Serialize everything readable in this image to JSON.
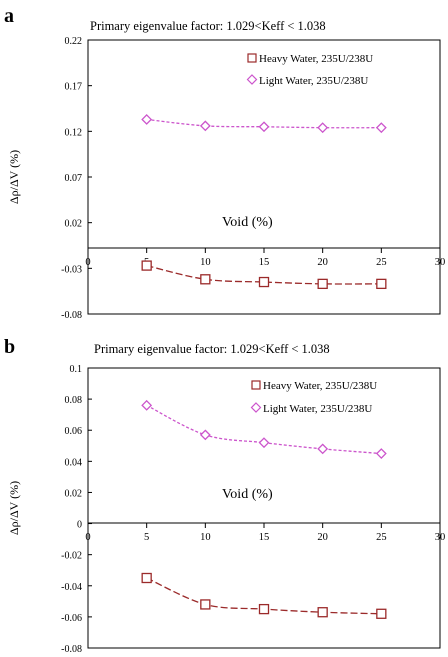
{
  "chart_data": [
    {
      "panel": "a",
      "type": "line",
      "title": "Primary eigenvalue factor: 1.029<Keff < 1.038",
      "xlabel": "Void  (%)",
      "ylabel": "Δρ/ΔV (%)",
      "xlim": [
        0,
        30
      ],
      "ylim": [
        -0.08,
        0.22
      ],
      "xticks": [
        0,
        5,
        10,
        15,
        20,
        25,
        30
      ],
      "yticks": [
        -0.08,
        -0.03,
        0.02,
        0.07,
        0.12,
        0.17,
        0.22
      ],
      "ytick_labels": [
        "-0.08",
        "-0.03",
        "0.02",
        "0.07",
        "0.12",
        "0.17",
        "0.22"
      ],
      "grid": false,
      "legend_position": "top-right",
      "series": [
        {
          "name": "Heavy Water,   235U/238U",
          "marker": "square",
          "color": "#9b2a2a",
          "x": [
            5,
            10,
            15,
            20,
            25
          ],
          "y": [
            -0.027,
            -0.042,
            -0.045,
            -0.047,
            -0.047
          ]
        },
        {
          "name": "Light  Water,   235U/238U",
          "marker": "diamond",
          "color": "#cc55cc",
          "x": [
            5,
            10,
            15,
            20,
            25
          ],
          "y": [
            0.133,
            0.126,
            0.125,
            0.124,
            0.124
          ]
        }
      ]
    },
    {
      "panel": "b",
      "type": "line",
      "title": "Primary eigenvalue factor: 1.029<Keff < 1.038",
      "xlabel": "Void  (%)",
      "ylabel": "Δρ/ΔV (%)",
      "xlim": [
        0,
        30
      ],
      "ylim": [
        -0.08,
        0.1
      ],
      "xticks": [
        0,
        5,
        10,
        15,
        20,
        25,
        30
      ],
      "yticks": [
        -0.08,
        -0.06,
        -0.04,
        -0.02,
        0,
        0.02,
        0.04,
        0.06,
        0.08,
        0.1
      ],
      "ytick_labels": [
        "-0.08",
        "-0.06",
        "-0.04",
        "-0.02",
        "0",
        "0.02",
        "0.04",
        "0.06",
        "0.08",
        "0.1"
      ],
      "grid": false,
      "legend_position": "top-right",
      "series": [
        {
          "name": "Heavy Water,   235U/238U",
          "marker": "square",
          "color": "#9b2a2a",
          "x": [
            5,
            10,
            15,
            20,
            25
          ],
          "y": [
            -0.035,
            -0.052,
            -0.055,
            -0.057,
            -0.058
          ]
        },
        {
          "name": "Light  Water,   235U/238U",
          "marker": "diamond",
          "color": "#cc55cc",
          "x": [
            5,
            10,
            15,
            20,
            25
          ],
          "y": [
            0.076,
            0.057,
            0.052,
            0.048,
            0.045
          ]
        }
      ]
    }
  ]
}
